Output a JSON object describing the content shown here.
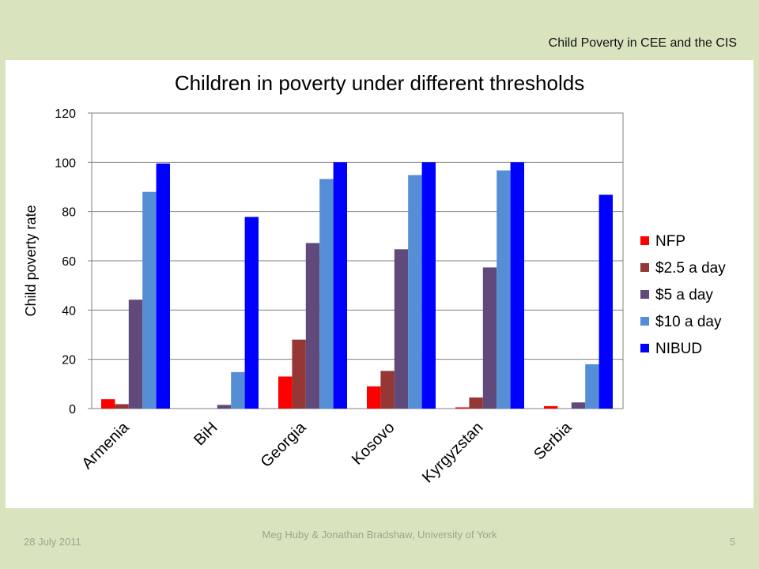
{
  "header": {
    "title": "Child Poverty in CEE and the CIS"
  },
  "footer": {
    "date": "28 July 2011",
    "author": "Meg Huby & Jonathan Bradshaw, University of York",
    "page": "5"
  },
  "chart_data": {
    "type": "bar",
    "title": "Children in poverty under different thresholds",
    "ylabel": "Child poverty rate",
    "xlabel": "",
    "ylim": [
      0,
      120
    ],
    "yticks": [
      0,
      20,
      40,
      60,
      80,
      100,
      120
    ],
    "grid": true,
    "legend": "right",
    "categories": [
      "Armenia",
      "BiH",
      "Georgia",
      "Kosovo",
      "Kyrgyzstan",
      "Serbia"
    ],
    "series": [
      {
        "name": "NFP",
        "color": "#ff0000",
        "values": [
          3.8,
          0,
          13,
          9,
          0.5,
          1
        ]
      },
      {
        "name": "$2.5 a day",
        "color": "#953735",
        "values": [
          1.8,
          0,
          28,
          15.3,
          4.5,
          0
        ]
      },
      {
        "name": "$5 a day",
        "color": "#604a7b",
        "values": [
          44.2,
          1.5,
          67.2,
          64.7,
          57.3,
          2.5
        ]
      },
      {
        "name": "$10 a day",
        "color": "#558ed5",
        "values": [
          88,
          14.8,
          93.2,
          94.8,
          96.7,
          18
        ]
      },
      {
        "name": "NIBUD",
        "color": "#0000ff",
        "values": [
          99.5,
          77.8,
          100,
          100,
          100,
          86.8
        ]
      }
    ]
  }
}
